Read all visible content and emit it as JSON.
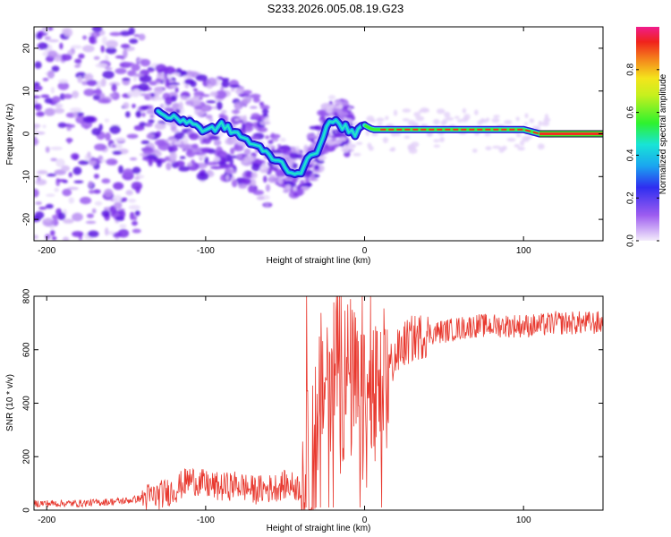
{
  "title": "S233.2026.005.08.19.G23",
  "chart_data": [
    {
      "type": "heatmap",
      "xlabel": "Height of straight line (km)",
      "ylabel": "Frequency (Hz)",
      "xlim": [
        -208,
        150
      ],
      "ylim": [
        -25,
        25
      ],
      "xticks": [
        -200,
        -100,
        0,
        100
      ],
      "yticks": [
        -20,
        -10,
        0,
        10,
        20
      ],
      "ridge": {
        "x": [
          -130,
          -120,
          -110,
          -100,
          -90,
          -80,
          -70,
          -60,
          -50,
          -45,
          -40,
          -35,
          -30,
          -25,
          -20,
          -15,
          -10,
          -5,
          0,
          5,
          10,
          20,
          30,
          40,
          50,
          60,
          70,
          80,
          90,
          100,
          110,
          150
        ],
        "y": [
          5,
          3.5,
          3,
          0.5,
          2,
          0,
          -2.5,
          -5,
          -7.5,
          -9.5,
          -8.5,
          -6,
          -4,
          1,
          3,
          2,
          1,
          0,
          2,
          1,
          1,
          1,
          1,
          1,
          1,
          1,
          1,
          1,
          1,
          1,
          0,
          0
        ]
      },
      "colorbar": {
        "label": "Normalized spectral amplitude",
        "range": [
          0,
          1
        ],
        "ticks": [
          0.0,
          0.2,
          0.4,
          0.6,
          0.8
        ],
        "tick_labels": [
          "0.0",
          "0.2",
          "0.4",
          "0.6",
          "0.8"
        ]
      }
    },
    {
      "type": "line",
      "xlabel": "Height of straight line (km)",
      "ylabel": "SNR (10 * v/v)",
      "xlim": [
        -208,
        150
      ],
      "ylim": [
        0,
        800
      ],
      "xticks": [
        -200,
        -100,
        0,
        100
      ],
      "yticks": [
        0,
        200,
        400,
        600,
        800
      ],
      "color": "#e8392f",
      "series": [
        {
          "name": "SNR",
          "x": [
            -208,
            -180,
            -150,
            -130,
            -120,
            -110,
            -100,
            -90,
            -80,
            -70,
            -60,
            -50,
            -40,
            -35,
            -30,
            -25,
            -20,
            -15,
            -10,
            -5,
            0,
            5,
            10,
            15,
            20,
            25,
            30,
            40,
            50,
            60,
            70,
            80,
            90,
            100,
            110,
            120,
            130,
            140,
            150
          ],
          "y": [
            25,
            25,
            35,
            55,
            75,
            115,
            95,
            85,
            95,
            75,
            80,
            95,
            85,
            150,
            350,
            500,
            550,
            450,
            500,
            430,
            350,
            420,
            380,
            530,
            580,
            620,
            640,
            660,
            670,
            680,
            690,
            690,
            690,
            690,
            690,
            700,
            700,
            700,
            700
          ]
        }
      ]
    }
  ]
}
